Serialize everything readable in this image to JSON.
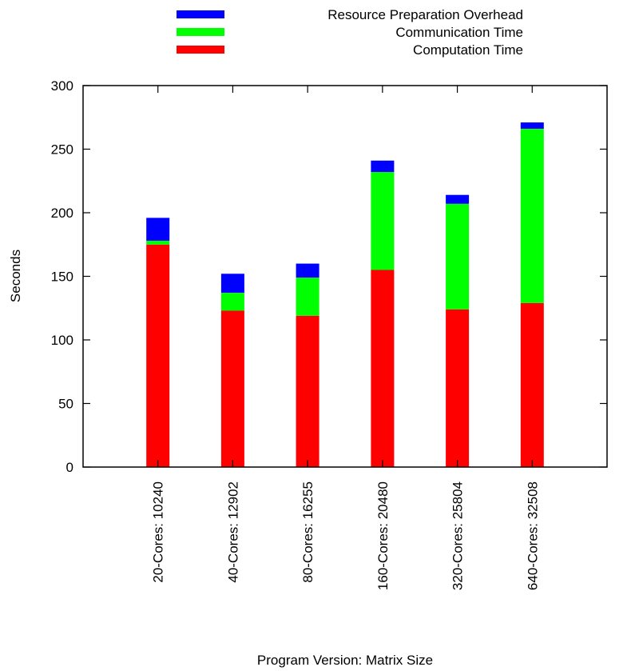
{
  "chart_data": {
    "type": "bar",
    "stacked": true,
    "categories": [
      "20-Cores: 10240",
      "40-Cores: 12902",
      "80-Cores: 16255",
      "160-Cores: 20480",
      "320-Cores: 25804",
      "640-Cores: 32508"
    ],
    "series": [
      {
        "name": "Computation Time",
        "color": "#ff0000",
        "values": [
          175,
          123,
          119,
          155,
          124,
          129
        ]
      },
      {
        "name": "Communication Time",
        "color": "#00ff00",
        "values": [
          3,
          14,
          30,
          77,
          83,
          137
        ]
      },
      {
        "name": "Resource Preparation Overhead",
        "color": "#0000ff",
        "values": [
          18,
          15,
          11,
          9,
          7,
          5
        ]
      }
    ],
    "legend_order": [
      "Resource Preparation Overhead",
      "Communication Time",
      "Computation Time"
    ],
    "xlabel": "Program Version: Matrix Size",
    "ylabel": "Seconds",
    "ylim": [
      0,
      300
    ],
    "yticks": [
      0,
      50,
      100,
      150,
      200,
      250,
      300
    ],
    "grid": false,
    "legend_position": "top"
  }
}
